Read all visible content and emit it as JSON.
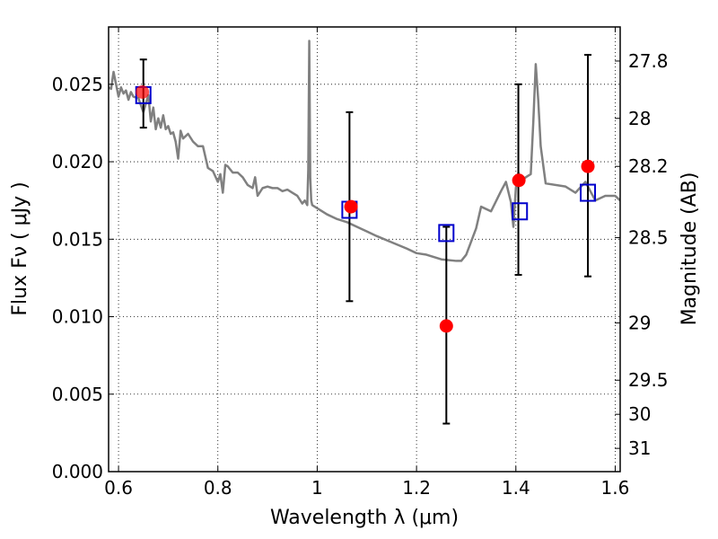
{
  "chart_data": {
    "type": "scatter",
    "xlabel": "Wavelength  λ (μm)",
    "ylabel": "Flux  Fν  ( μJy )",
    "y2label": "Magnitude (AB)",
    "xlim": [
      0.58,
      1.61
    ],
    "ylim": [
      0.0,
      0.0287
    ],
    "grid": true,
    "x_ticks": [
      {
        "value": 0.6,
        "label": "0.6"
      },
      {
        "value": 0.8,
        "label": "0.8"
      },
      {
        "value": 1.0,
        "label": "1"
      },
      {
        "value": 1.2,
        "label": "1.2"
      },
      {
        "value": 1.4,
        "label": "1.4"
      },
      {
        "value": 1.6,
        "label": "1.6"
      }
    ],
    "y_ticks": [
      {
        "value": 0.0,
        "label": "0.000"
      },
      {
        "value": 0.005,
        "label": "0.005"
      },
      {
        "value": 0.01,
        "label": "0.010"
      },
      {
        "value": 0.015,
        "label": "0.015"
      },
      {
        "value": 0.02,
        "label": "0.020"
      },
      {
        "value": 0.025,
        "label": "0.025"
      }
    ],
    "y2_ticks": [
      {
        "value": 27.8,
        "label": "27.8"
      },
      {
        "value": 28.0,
        "label": "28"
      },
      {
        "value": 28.2,
        "label": "28.2"
      },
      {
        "value": 28.5,
        "label": "28.5"
      },
      {
        "value": 29.0,
        "label": "29"
      },
      {
        "value": 29.5,
        "label": "29.5"
      },
      {
        "value": 30.0,
        "label": "30"
      },
      {
        "value": 31.0,
        "label": "31"
      }
    ],
    "y2_flux_positions": [
      0.0265,
      0.0228,
      0.0197,
      0.0151,
      0.0096,
      0.0059,
      0.0037,
      0.0015
    ],
    "series": [
      {
        "type": "line",
        "color": "#808080",
        "x": [
          0.58,
          0.585,
          0.59,
          0.595,
          0.6,
          0.605,
          0.61,
          0.615,
          0.62,
          0.625,
          0.63,
          0.64,
          0.65,
          0.66,
          0.665,
          0.67,
          0.675,
          0.68,
          0.685,
          0.69,
          0.695,
          0.7,
          0.705,
          0.71,
          0.715,
          0.72,
          0.725,
          0.73,
          0.74,
          0.75,
          0.76,
          0.77,
          0.78,
          0.79,
          0.8,
          0.805,
          0.81,
          0.815,
          0.82,
          0.83,
          0.84,
          0.85,
          0.86,
          0.87,
          0.875,
          0.88,
          0.89,
          0.9,
          0.91,
          0.92,
          0.93,
          0.94,
          0.95,
          0.96,
          0.97,
          0.975,
          0.98,
          0.982,
          0.984,
          0.986,
          0.988,
          0.99,
          1.0,
          1.02,
          1.04,
          1.06,
          1.08,
          1.1,
          1.12,
          1.15,
          1.18,
          1.2,
          1.22,
          1.25,
          1.28,
          1.29,
          1.3,
          1.32,
          1.33,
          1.35,
          1.37,
          1.38,
          1.39,
          1.395,
          1.4,
          1.405,
          1.41,
          1.42,
          1.43,
          1.435,
          1.44,
          1.445,
          1.45,
          1.46,
          1.5,
          1.52,
          1.54,
          1.56,
          1.58,
          1.6,
          1.61
        ],
        "y": [
          0.0248,
          0.0247,
          0.0258,
          0.025,
          0.0242,
          0.0248,
          0.0244,
          0.0246,
          0.024,
          0.0245,
          0.0242,
          0.0241,
          0.0232,
          0.0243,
          0.0226,
          0.0235,
          0.0221,
          0.0228,
          0.0222,
          0.023,
          0.0221,
          0.0223,
          0.0218,
          0.0219,
          0.0213,
          0.0202,
          0.022,
          0.0215,
          0.0218,
          0.0213,
          0.021,
          0.021,
          0.0196,
          0.0194,
          0.0187,
          0.0192,
          0.018,
          0.0198,
          0.0197,
          0.0193,
          0.0193,
          0.019,
          0.0185,
          0.0183,
          0.019,
          0.0178,
          0.0183,
          0.0184,
          0.0183,
          0.0183,
          0.0181,
          0.0182,
          0.018,
          0.0178,
          0.0173,
          0.0175,
          0.0172,
          0.0195,
          0.0278,
          0.019,
          0.0175,
          0.0172,
          0.017,
          0.0166,
          0.0163,
          0.0161,
          0.0158,
          0.0155,
          0.0152,
          0.0148,
          0.0144,
          0.0141,
          0.014,
          0.0137,
          0.0136,
          0.0136,
          0.014,
          0.0157,
          0.0171,
          0.0168,
          0.0181,
          0.0187,
          0.0174,
          0.0158,
          0.0183,
          0.0193,
          0.0187,
          0.019,
          0.0192,
          0.0225,
          0.0263,
          0.024,
          0.021,
          0.0186,
          0.0184,
          0.018,
          0.0187,
          0.0175,
          0.0178,
          0.0178,
          0.0175
        ]
      },
      {
        "type": "errorbar",
        "color": "#000000",
        "x": [
          0.65,
          1.065,
          1.26,
          1.405,
          1.545
        ],
        "y": [
          0.0244,
          0.0171,
          0.0094,
          0.0188,
          0.0197
        ],
        "err_low": [
          0.0222,
          0.011,
          0.0031,
          0.0127,
          0.0126
        ],
        "err_high": [
          0.0266,
          0.0232,
          0.0158,
          0.025,
          0.0269
        ]
      },
      {
        "type": "marker-square",
        "color": "#0000cc",
        "x": [
          0.65,
          1.065,
          1.26,
          1.408,
          1.545
        ],
        "y": [
          0.0243,
          0.0169,
          0.0154,
          0.0168,
          0.018
        ]
      },
      {
        "type": "marker-circle",
        "color": "#ff0000",
        "x": [
          0.648,
          1.068,
          1.26,
          1.406,
          1.545
        ],
        "y": [
          0.0245,
          0.0171,
          0.0094,
          0.0188,
          0.0197
        ]
      }
    ]
  }
}
